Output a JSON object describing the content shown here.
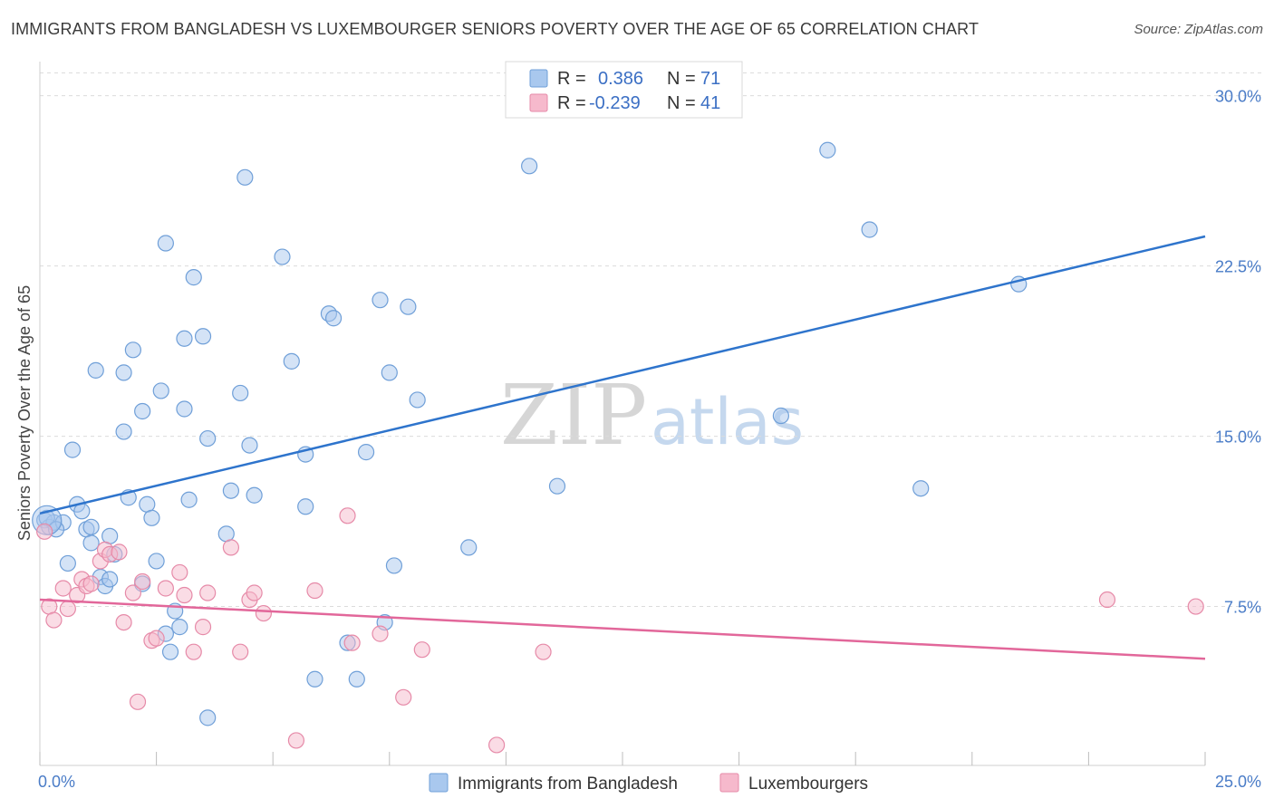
{
  "header": {
    "title": "IMMIGRANTS FROM BANGLADESH VS LUXEMBOURGER SENIORS POVERTY OVER THE AGE OF 65 CORRELATION CHART",
    "source": "Source: ZipAtlas.com"
  },
  "watermark": {
    "zip": "ZIP",
    "atlas": "atlas"
  },
  "legend": {
    "rows": [
      {
        "r_label": "R =",
        "r_value": "0.386",
        "n_label": "N =",
        "n_value": "71"
      },
      {
        "r_label": "R =",
        "r_value": "-0.239",
        "n_label": "N =",
        "n_value": "41"
      }
    ]
  },
  "colors": {
    "blue_fill": "#a9c8ee",
    "blue_stroke": "#6f9fd8",
    "blue_line": "#2e74cc",
    "pink_fill": "#f6b9cc",
    "pink_stroke": "#e68aa8",
    "pink_line": "#e2679a"
  },
  "chart_data": {
    "type": "scatter",
    "title": "IMMIGRANTS FROM BANGLADESH VS LUXEMBOURGER SENIORS POVERTY OVER THE AGE OF 65 CORRELATION CHART",
    "xlabel": "",
    "ylabel": "Seniors Poverty Over the Age of 65",
    "xlim": [
      0,
      25
    ],
    "ylim": [
      0.5,
      31.5
    ],
    "x_tick_labels": [
      "0.0%",
      "25.0%"
    ],
    "y_ticks": [
      7.5,
      15.0,
      22.5,
      30.0
    ],
    "y_tick_labels": [
      "7.5%",
      "15.0%",
      "22.5%",
      "30.0%"
    ],
    "legend_position": "bottom-center",
    "series": [
      {
        "name": "Immigrants from Bangladesh",
        "color": "#6f9fd8",
        "trendline": {
          "x": [
            0,
            25
          ],
          "y": [
            11.6,
            23.8
          ]
        },
        "points": [
          [
            0.1,
            11.3
          ],
          [
            0.2,
            11.0
          ],
          [
            0.3,
            11.2
          ],
          [
            0.5,
            11.2
          ],
          [
            0.6,
            9.4
          ],
          [
            0.7,
            14.4
          ],
          [
            0.8,
            12.0
          ],
          [
            0.9,
            11.7
          ],
          [
            1.0,
            10.9
          ],
          [
            1.1,
            11.0
          ],
          [
            1.1,
            10.3
          ],
          [
            1.2,
            17.9
          ],
          [
            1.3,
            8.8
          ],
          [
            1.4,
            8.4
          ],
          [
            1.5,
            8.7
          ],
          [
            1.5,
            10.6
          ],
          [
            1.6,
            9.8
          ],
          [
            1.8,
            15.2
          ],
          [
            1.8,
            17.8
          ],
          [
            1.9,
            12.3
          ],
          [
            2.0,
            18.8
          ],
          [
            2.2,
            8.5
          ],
          [
            2.2,
            16.1
          ],
          [
            2.3,
            12.0
          ],
          [
            2.4,
            11.4
          ],
          [
            2.5,
            9.5
          ],
          [
            2.6,
            17.0
          ],
          [
            2.7,
            6.3
          ],
          [
            2.7,
            23.5
          ],
          [
            2.8,
            5.5
          ],
          [
            2.9,
            7.3
          ],
          [
            3.0,
            6.6
          ],
          [
            3.1,
            19.3
          ],
          [
            3.1,
            16.2
          ],
          [
            3.2,
            12.2
          ],
          [
            3.3,
            22.0
          ],
          [
            3.5,
            19.4
          ],
          [
            3.6,
            2.6
          ],
          [
            3.6,
            14.9
          ],
          [
            4.0,
            10.7
          ],
          [
            4.1,
            12.6
          ],
          [
            4.3,
            16.9
          ],
          [
            4.4,
            26.4
          ],
          [
            4.5,
            14.6
          ],
          [
            4.6,
            12.4
          ],
          [
            5.2,
            22.9
          ],
          [
            5.4,
            18.3
          ],
          [
            5.7,
            14.2
          ],
          [
            5.7,
            11.9
          ],
          [
            5.9,
            4.3
          ],
          [
            6.2,
            20.4
          ],
          [
            6.3,
            20.2
          ],
          [
            6.6,
            5.9
          ],
          [
            6.8,
            4.3
          ],
          [
            7.0,
            14.3
          ],
          [
            7.3,
            21.0
          ],
          [
            7.4,
            6.8
          ],
          [
            7.5,
            17.8
          ],
          [
            7.6,
            9.3
          ],
          [
            7.9,
            20.7
          ],
          [
            8.1,
            16.6
          ],
          [
            9.2,
            10.1
          ],
          [
            10.5,
            26.9
          ],
          [
            11.1,
            12.8
          ],
          [
            15.9,
            15.9
          ],
          [
            16.9,
            27.6
          ],
          [
            17.8,
            24.1
          ],
          [
            18.9,
            12.7
          ],
          [
            21.0,
            21.7
          ],
          [
            0.15,
            11.4
          ],
          [
            0.35,
            10.9
          ]
        ]
      },
      {
        "name": "Luxembourgers",
        "color": "#e68aa8",
        "trendline": {
          "x": [
            0,
            25
          ],
          "y": [
            7.8,
            5.2
          ]
        },
        "points": [
          [
            0.1,
            10.8
          ],
          [
            0.2,
            7.5
          ],
          [
            0.3,
            6.9
          ],
          [
            0.5,
            8.3
          ],
          [
            0.6,
            7.4
          ],
          [
            0.8,
            8.0
          ],
          [
            0.9,
            8.7
          ],
          [
            1.0,
            8.4
          ],
          [
            1.1,
            8.5
          ],
          [
            1.3,
            9.5
          ],
          [
            1.4,
            10.0
          ],
          [
            1.5,
            9.8
          ],
          [
            1.7,
            9.9
          ],
          [
            1.8,
            6.8
          ],
          [
            2.0,
            8.1
          ],
          [
            2.1,
            3.3
          ],
          [
            2.2,
            8.6
          ],
          [
            2.4,
            6.0
          ],
          [
            2.5,
            6.1
          ],
          [
            2.7,
            8.3
          ],
          [
            3.0,
            9.0
          ],
          [
            3.1,
            8.0
          ],
          [
            3.3,
            5.5
          ],
          [
            3.5,
            6.6
          ],
          [
            3.6,
            8.1
          ],
          [
            4.1,
            10.1
          ],
          [
            4.3,
            5.5
          ],
          [
            4.5,
            7.8
          ],
          [
            4.6,
            8.1
          ],
          [
            4.8,
            7.2
          ],
          [
            5.5,
            1.6
          ],
          [
            5.9,
            8.2
          ],
          [
            6.6,
            11.5
          ],
          [
            6.7,
            5.9
          ],
          [
            7.3,
            6.3
          ],
          [
            7.8,
            3.5
          ],
          [
            8.2,
            5.6
          ],
          [
            9.8,
            1.4
          ],
          [
            10.8,
            5.5
          ],
          [
            22.9,
            7.8
          ],
          [
            24.8,
            7.5
          ]
        ]
      }
    ]
  }
}
